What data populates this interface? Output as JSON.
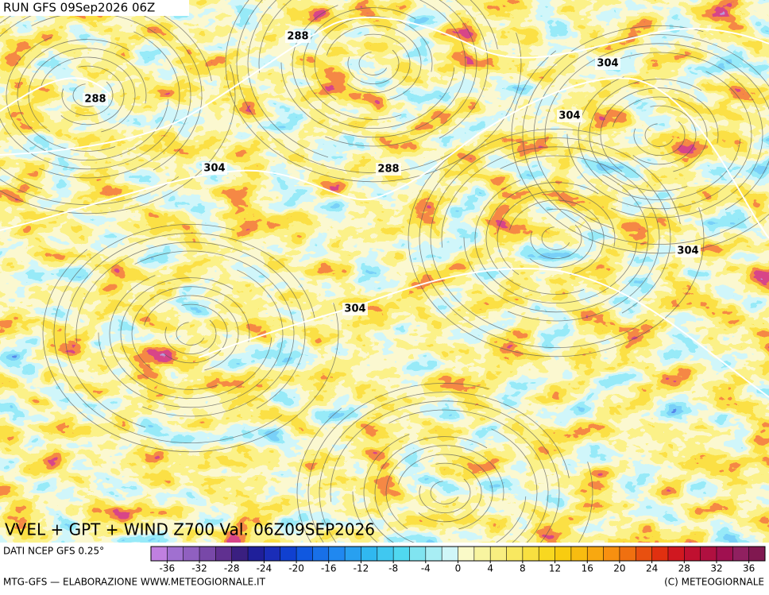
{
  "header": {
    "run": "RUN GFS 09Sep2026 06Z"
  },
  "map": {
    "title": "VVEL + GPT + WIND Z700 Val. 06Z09SEP2026",
    "contour_labels": [
      "288",
      "288",
      "304",
      "304",
      "304",
      "288",
      "304",
      "304"
    ]
  },
  "legend": {
    "source": "DATI NCEP GFS 0.25°",
    "range": [
      -38,
      38
    ],
    "ticks": [
      -36,
      -32,
      -28,
      -24,
      -20,
      -16,
      -12,
      -8,
      -4,
      0,
      4,
      8,
      12,
      16,
      20,
      24,
      28,
      32,
      36
    ],
    "colors": [
      "#c080e0",
      "#a070d0",
      "#9060c0",
      "#7848a8",
      "#603090",
      "#3a1f80",
      "#1f1f9a",
      "#1a2db8",
      "#1040d0",
      "#1058e0",
      "#1870e8",
      "#2088f0",
      "#28a0f0",
      "#30b8f0",
      "#40c8f0",
      "#50d8f0",
      "#80e4f0",
      "#a8eef4",
      "#d0f6f8",
      "#fafac8",
      "#f8f4a0",
      "#f8ee80",
      "#f8e860",
      "#f8e040",
      "#f8d820",
      "#f8cc10",
      "#f8bc10",
      "#f8a810",
      "#f89010",
      "#f07010",
      "#e85010",
      "#e03010",
      "#d01820",
      "#c01030",
      "#b01040",
      "#a01050",
      "#902060",
      "#801850"
    ]
  },
  "footer": {
    "left": "MTG-GFS — ELABORAZIONE WWW.METEOGIORNALE.IT",
    "right": "(C) METEOGIORNALE"
  }
}
